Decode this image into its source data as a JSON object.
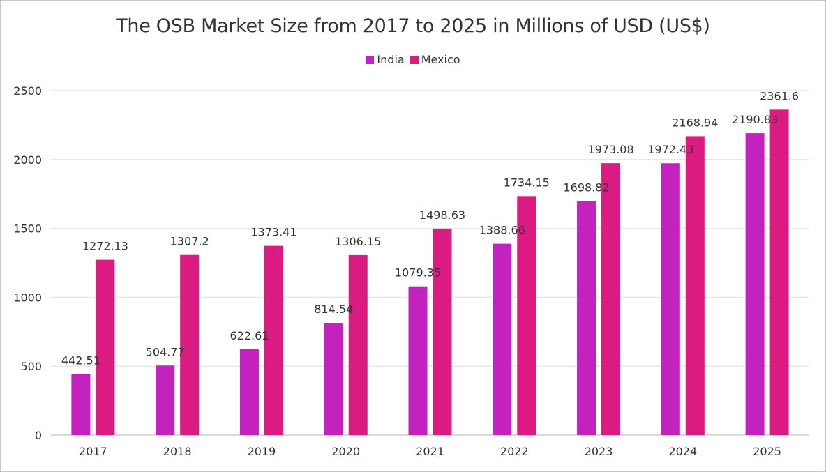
{
  "chart_data": {
    "type": "bar",
    "title": "The OSB Market Size from 2017 to 2025 in Millions of USD (US$)",
    "xlabel": "",
    "ylabel": "",
    "categories": [
      "2017",
      "2018",
      "2019",
      "2020",
      "2021",
      "2022",
      "2023",
      "2024",
      "2025"
    ],
    "series": [
      {
        "name": "India",
        "color": "#c322bf",
        "values": [
          442.51,
          504.77,
          622.61,
          814.54,
          1079.35,
          1388.66,
          1698.82,
          1972.43,
          2190.83
        ],
        "labels": [
          "442.51",
          "504.77",
          "622.61",
          "814.54",
          "1079.35",
          "1388.66",
          "1698.82",
          "1972.43",
          "2190.83"
        ]
      },
      {
        "name": "Mexico",
        "color": "#db1a82",
        "values": [
          1272.13,
          1307.2,
          1373.41,
          1306.15,
          1498.63,
          1734.15,
          1973.08,
          2168.94,
          2361.6
        ],
        "labels": [
          "1272.13",
          "1307.2",
          "1373.41",
          "1306.15",
          "1498.63",
          "1734.15",
          "1973.08",
          "2168.94",
          "2361.6"
        ]
      }
    ],
    "yticks": [
      0,
      500,
      1000,
      1500,
      2000,
      2500
    ],
    "ylim": [
      0,
      2500
    ],
    "grid": true,
    "legend_position": "top-center"
  }
}
